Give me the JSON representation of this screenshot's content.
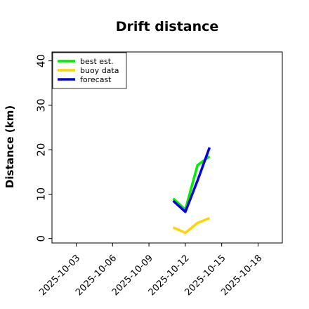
{
  "chart_data": {
    "type": "line",
    "title": "Drift distance",
    "xlabel": "",
    "ylabel": "Distance (km)",
    "xlim": [
      "2025-10-01T00:00",
      "2025-10-20T00:00"
    ],
    "ylim": [
      -1,
      42
    ],
    "yticks": [
      0,
      10,
      20,
      30,
      40
    ],
    "xticks": [
      "2025-10-03",
      "2025-10-06",
      "2025-10-09",
      "2025-10-12",
      "2025-10-15",
      "2025-10-18"
    ],
    "highlight_tick": "2025-10-09",
    "highlight_color": "#2a8a2a",
    "legend_position": "upper left",
    "grid": false,
    "series": [
      {
        "name": "best est.",
        "color": "#00ee00",
        "x": [
          "2025-10-11T00:00",
          "2025-10-12T00:00",
          "2025-10-13T00:00",
          "2025-10-14T00:00"
        ],
        "values": [
          9,
          6.5,
          16.5,
          18.5
        ]
      },
      {
        "name": "buoy data",
        "color": "#ffd400",
        "x": [
          "2025-10-11T00:00",
          "2025-10-12T00:00",
          "2025-10-13T00:00",
          "2025-10-14T00:00"
        ],
        "values": [
          2.5,
          1.3,
          3.5,
          4.6
        ]
      },
      {
        "name": "forecast",
        "color": "#0000ee",
        "x": [
          "2025-10-11T00:00",
          "2025-10-12T00:00",
          "2025-10-13T00:00",
          "2025-10-14T00:00"
        ],
        "values": [
          8.5,
          6,
          13,
          20.5
        ]
      }
    ]
  }
}
